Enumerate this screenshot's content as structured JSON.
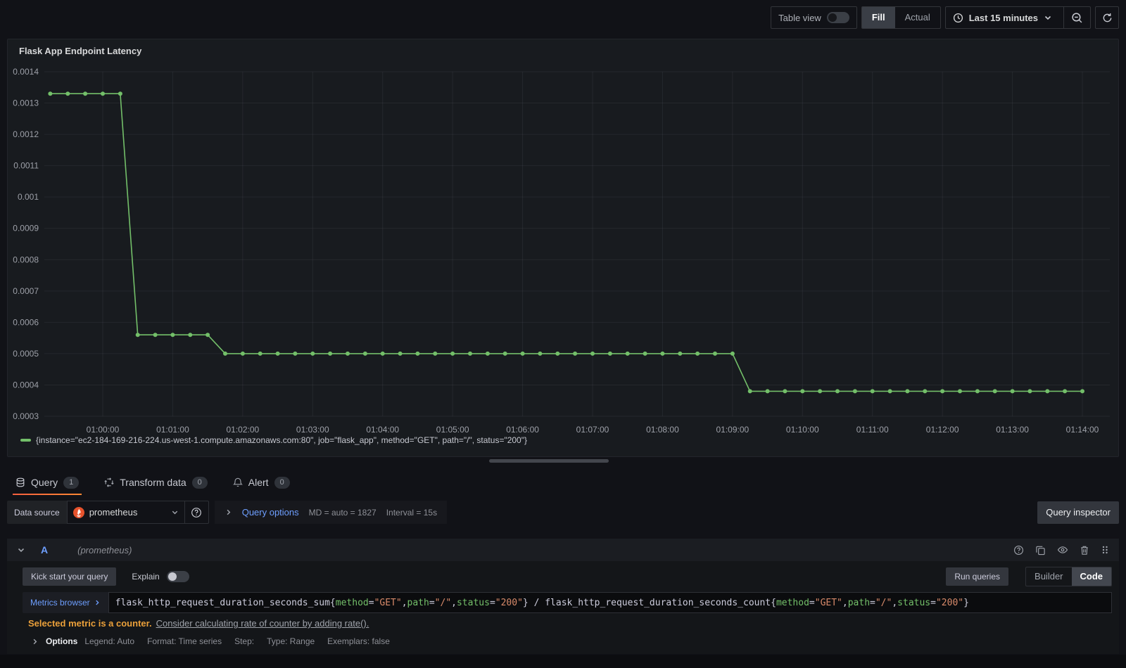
{
  "colors": {
    "accent_orange": "#ff8833",
    "series_green": "#73bf69",
    "link_blue": "#6e9fff",
    "warning_orange": "#eba03a",
    "panel_bg": "#181b1f",
    "page_bg": "#111217"
  },
  "toolbar": {
    "table_view_label": "Table view",
    "fill_label": "Fill",
    "actual_label": "Actual",
    "time_range_label": "Last 15 minutes"
  },
  "panel": {
    "title": "Flask App Endpoint Latency",
    "legend": "{instance=\"ec2-184-169-216-224.us-west-1.compute.amazonaws.com:80\", job=\"flask_app\", method=\"GET\", path=\"/\", status=\"200\"}"
  },
  "chart_data": {
    "type": "line",
    "title": "Flask App Endpoint Latency",
    "series_name": "{instance=\"ec2-184-169-216-224.us-west-1.compute.amazonaws.com:80\", job=\"flask_app\", method=\"GET\", path=\"/\", status=\"200\"}",
    "color": "#73bf69",
    "grid": true,
    "legend_position": "bottom",
    "ylim": [
      0.0003,
      0.0014
    ],
    "y_ticks": [
      0.0014,
      0.0013,
      0.0012,
      0.0011,
      0.001,
      0.0009,
      0.0008,
      0.0007,
      0.0006,
      0.0005,
      0.0004,
      0.0003
    ],
    "x_tick_labels": [
      "01:00:00",
      "01:01:00",
      "01:02:00",
      "01:03:00",
      "01:04:00",
      "01:05:00",
      "01:06:00",
      "01:07:00",
      "01:08:00",
      "01:09:00",
      "01:10:00",
      "01:11:00",
      "01:12:00",
      "01:13:00",
      "01:14:00"
    ],
    "start_offset_seconds": -45,
    "step_seconds": 15,
    "values": [
      0.00133,
      0.00133,
      0.00133,
      0.00133,
      0.00133,
      0.00056,
      0.00056,
      0.00056,
      0.00056,
      0.00056,
      0.0005,
      0.0005,
      0.0005,
      0.0005,
      0.0005,
      0.0005,
      0.0005,
      0.0005,
      0.0005,
      0.0005,
      0.0005,
      0.0005,
      0.0005,
      0.0005,
      0.0005,
      0.0005,
      0.0005,
      0.0005,
      0.0005,
      0.0005,
      0.0005,
      0.0005,
      0.0005,
      0.0005,
      0.0005,
      0.0005,
      0.0005,
      0.0005,
      0.0005,
      0.0005,
      0.00038,
      0.00038,
      0.00038,
      0.00038,
      0.00038,
      0.00038,
      0.00038,
      0.00038,
      0.00038,
      0.00038,
      0.00038,
      0.00038,
      0.00038,
      0.00038,
      0.00038,
      0.00038,
      0.00038,
      0.00038,
      0.00038,
      0.00038
    ]
  },
  "tabs": [
    {
      "label": "Query",
      "badge": "1",
      "active": true
    },
    {
      "label": "Transform data",
      "badge": "0",
      "active": false
    },
    {
      "label": "Alert",
      "badge": "0",
      "active": false
    }
  ],
  "datasource": {
    "label": "Data source",
    "value": "prometheus",
    "query_options_label": "Query options",
    "md_text": "MD = auto = 1827",
    "interval_text": "Interval = 15s",
    "inspector_label": "Query inspector"
  },
  "query_row": {
    "ref_id": "A",
    "datasource_hint": "(prometheus)",
    "kick_start_label": "Kick start your query",
    "explain_label": "Explain",
    "run_queries_label": "Run queries",
    "builder_label": "Builder",
    "code_label": "Code",
    "metrics_browser_label": "Metrics browser",
    "expression_tokens": [
      {
        "text": "flask_http_request_duration_seconds_sum{",
        "type": "plain"
      },
      {
        "text": "method",
        "type": "label"
      },
      {
        "text": "=",
        "type": "plain"
      },
      {
        "text": "\"GET\"",
        "type": "string"
      },
      {
        "text": ",",
        "type": "plain"
      },
      {
        "text": "path",
        "type": "label"
      },
      {
        "text": "=",
        "type": "plain"
      },
      {
        "text": "\"/\"",
        "type": "string"
      },
      {
        "text": ",",
        "type": "plain"
      },
      {
        "text": "status",
        "type": "label"
      },
      {
        "text": "=",
        "type": "plain"
      },
      {
        "text": "\"200\"",
        "type": "string"
      },
      {
        "text": "} / flask_http_request_duration_seconds_count{",
        "type": "plain"
      },
      {
        "text": "method",
        "type": "label"
      },
      {
        "text": "=",
        "type": "plain"
      },
      {
        "text": "\"GET\"",
        "type": "string"
      },
      {
        "text": ",",
        "type": "plain"
      },
      {
        "text": "path",
        "type": "label"
      },
      {
        "text": "=",
        "type": "plain"
      },
      {
        "text": "\"/\"",
        "type": "string"
      },
      {
        "text": ",",
        "type": "plain"
      },
      {
        "text": "status",
        "type": "label"
      },
      {
        "text": "=",
        "type": "plain"
      },
      {
        "text": "\"200\"",
        "type": "string"
      },
      {
        "text": "}",
        "type": "plain"
      }
    ],
    "warning_strong": "Selected metric is a counter.",
    "warning_link": "Consider calculating rate of counter by adding rate().",
    "options_label": "Options",
    "options_summary": [
      "Legend: Auto",
      "Format: Time series",
      "Step:",
      "Type: Range",
      "Exemplars: false"
    ]
  }
}
